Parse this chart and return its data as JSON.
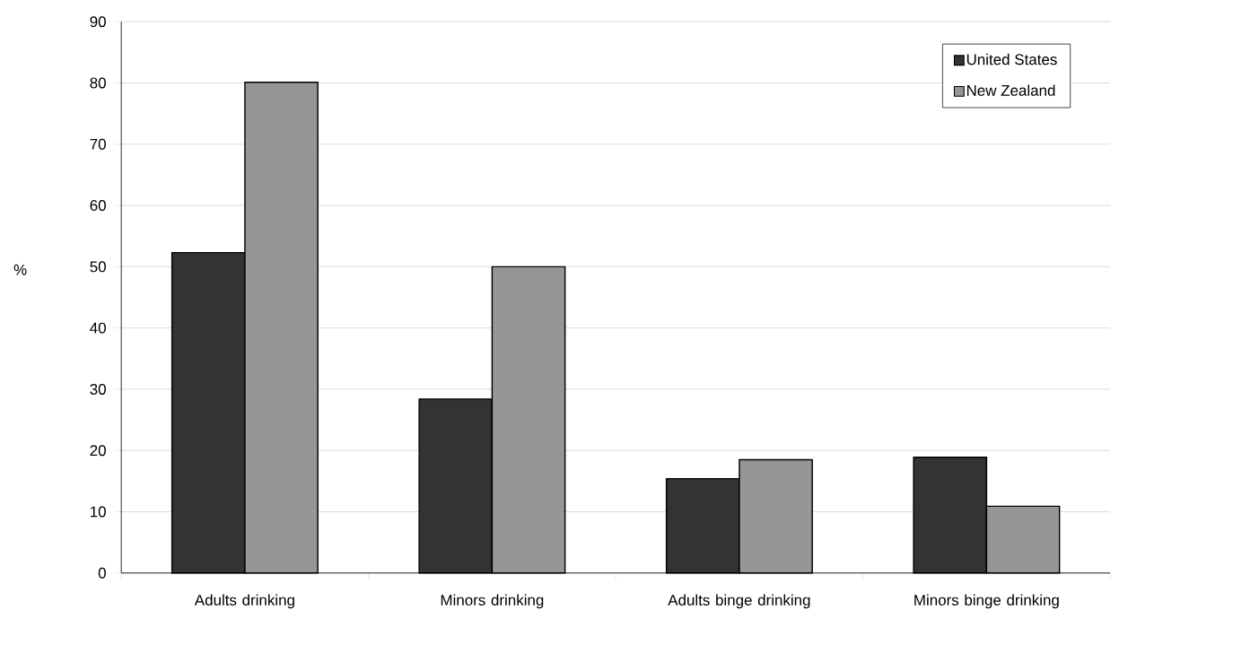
{
  "chart_data": {
    "type": "bar",
    "ylabel": "%",
    "categories": [
      "Adults drinking",
      "Minors drinking",
      "Adults binge drinking",
      "Minors binge drinking"
    ],
    "series": [
      {
        "name": "United States",
        "color": "#333333",
        "values": [
          52.3,
          28.4,
          15.4,
          18.9
        ]
      },
      {
        "name": "New Zealand",
        "color": "#969696",
        "values": [
          80.1,
          50.0,
          18.5,
          10.9
        ]
      }
    ],
    "ylim": [
      0,
      90
    ],
    "yticks": [
      0,
      10,
      20,
      30,
      40,
      50,
      60,
      70,
      80,
      90
    ],
    "grid": "y",
    "legend": "top right"
  }
}
